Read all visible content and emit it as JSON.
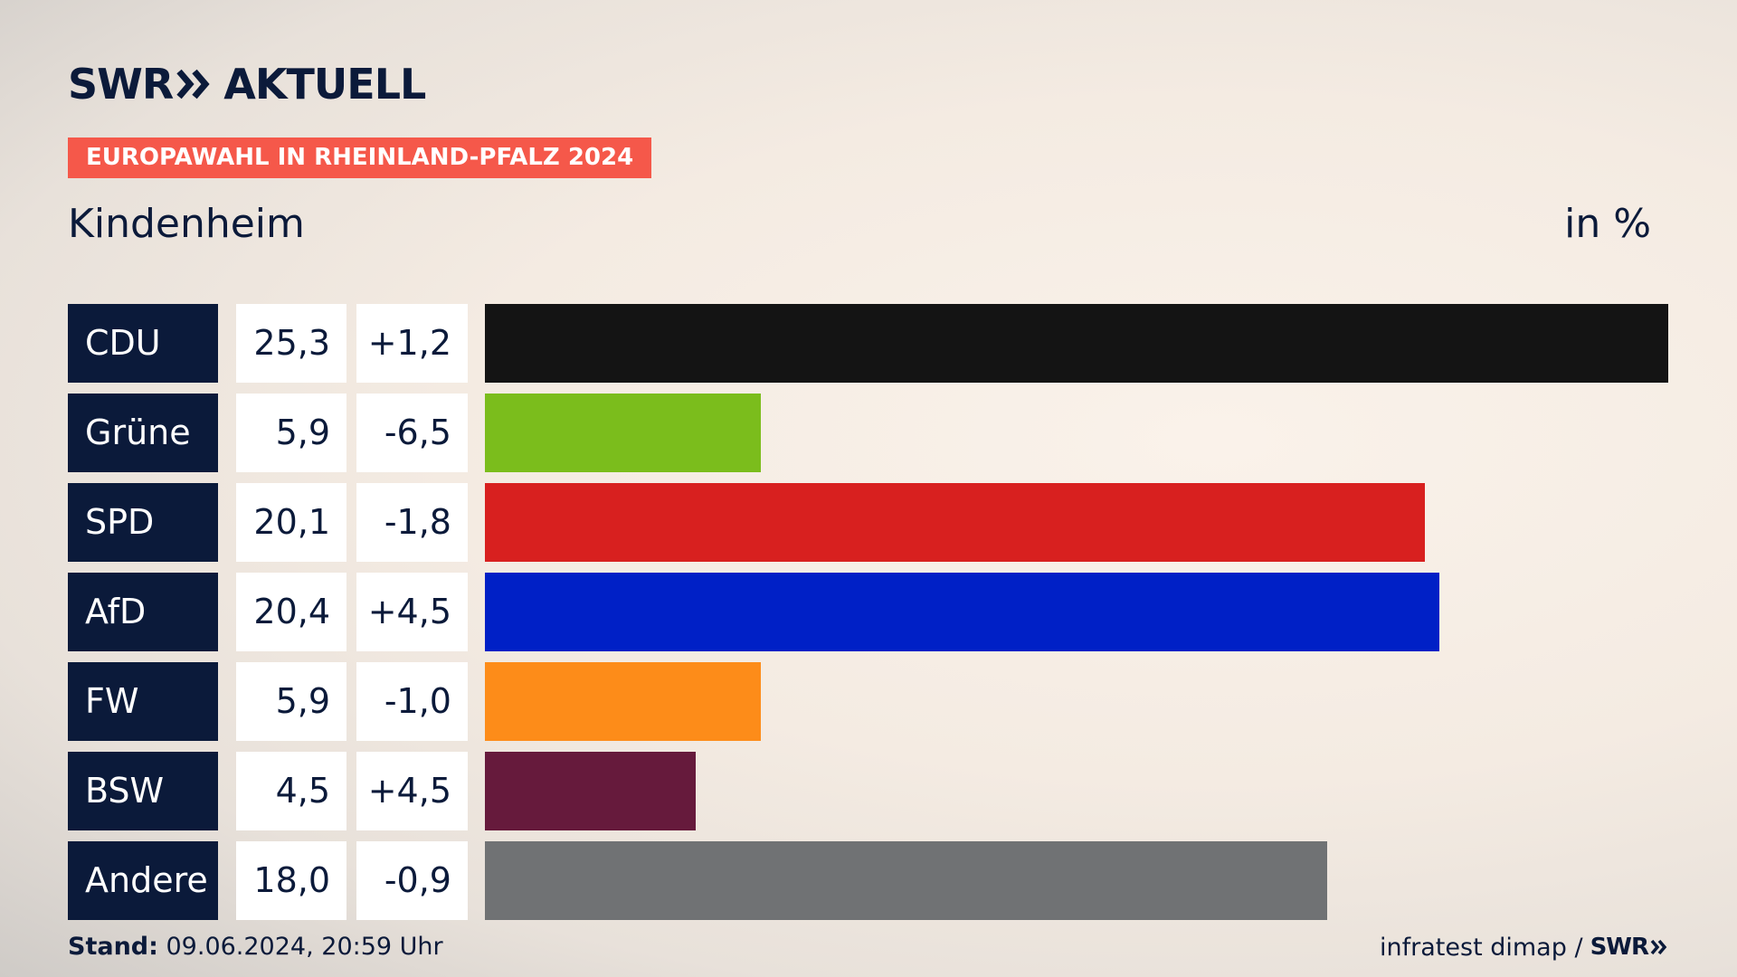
{
  "header": {
    "logo_brand": "SWR",
    "logo_section": "AKTUELL",
    "banner": "EUROPAWAHL IN RHEINLAND-PFALZ 2024",
    "location": "Kindenheim",
    "unit": "in %"
  },
  "chart_data": {
    "type": "bar",
    "orientation": "horizontal",
    "title": "EUROPAWAHL IN RHEINLAND-PFALZ 2024",
    "subtitle": "Kindenheim",
    "unit": "in %",
    "categories": [
      "CDU",
      "Grüne",
      "SPD",
      "AfD",
      "FW",
      "BSW",
      "Andere"
    ],
    "values": [
      25.3,
      5.9,
      20.1,
      20.4,
      5.9,
      4.5,
      18.0
    ],
    "value_labels": [
      "25,3",
      "5,9",
      "20,1",
      "20,4",
      "5,9",
      "4,5",
      "18,0"
    ],
    "changes": [
      1.2,
      -6.5,
      -1.8,
      4.5,
      -1.0,
      4.5,
      -0.9
    ],
    "change_labels": [
      "+1,2",
      "-6,5",
      "-1,8",
      "+4,5",
      "-1,0",
      "+4,5",
      "-0,9"
    ],
    "colors": [
      "#141414",
      "#7bbd1c",
      "#d8201f",
      "#0020c6",
      "#fd8c19",
      "#661a3c",
      "#707274"
    ],
    "xlim": [
      0,
      25.3
    ]
  },
  "colors": {
    "navy": "#0b1a3a",
    "banner": "#f5584a"
  },
  "footer": {
    "stand_label": "Stand:",
    "stand_value": " 09.06.2024, 20:59 Uhr",
    "source": "infratest dimap /",
    "source_logo": "SWR"
  }
}
